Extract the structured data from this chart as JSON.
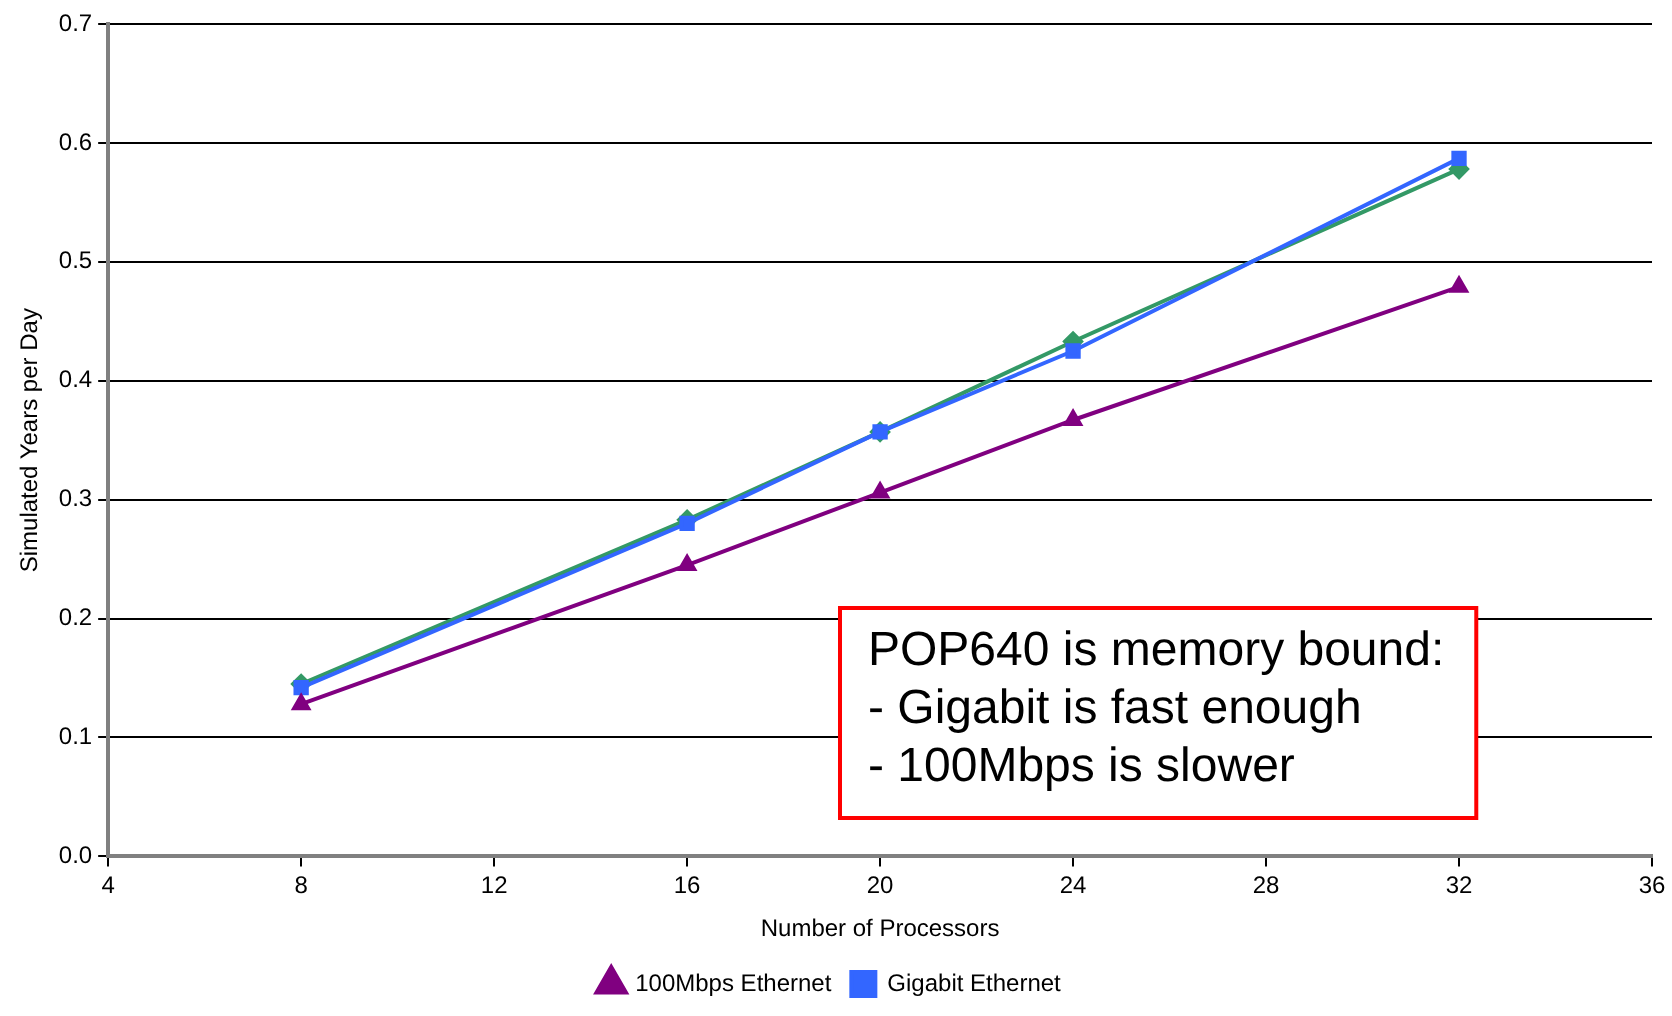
{
  "chart_data": {
    "type": "line",
    "xlabel": "Number of Processors",
    "ylabel": "Simulated Years per Day",
    "x": [
      8,
      16,
      20,
      24,
      32
    ],
    "series": [
      {
        "color": "#339966",
        "marker": "diamond",
        "values": [
          0.145,
          0.283,
          0.357,
          0.433,
          0.578
        ]
      },
      {
        "name": "Gigabit Ethernet",
        "color": "#3366ff",
        "marker": "square",
        "values": [
          0.142,
          0.28,
          0.357,
          0.425,
          0.587
        ]
      },
      {
        "name": "100Mbps Ethernet",
        "color": "#800080",
        "marker": "triangle",
        "values": [
          0.128,
          0.245,
          0.306,
          0.367,
          0.479
        ]
      }
    ],
    "xlim": [
      4,
      36
    ],
    "xticks": [
      4,
      8,
      12,
      16,
      20,
      24,
      28,
      32,
      36
    ],
    "ylim": [
      0,
      0.7
    ],
    "yticks": [
      {
        "value": 0,
        "label": "0.0"
      },
      0.1,
      0.2,
      0.3,
      0.4,
      0.5,
      0.6,
      0.7
    ],
    "grid": "y",
    "legend": "bottom",
    "line_style": "solid",
    "annotations": [
      "POP640 is memory bound:\n- Gigabit is fast enough\n- 100Mbps is slower"
    ]
  }
}
